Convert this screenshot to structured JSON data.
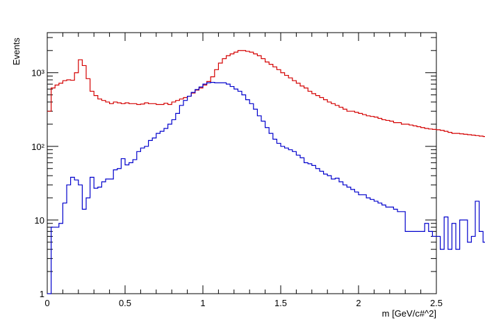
{
  "chart_data": {
    "type": "line",
    "title": "",
    "xlabel": "m [GeV/c#^2]",
    "ylabel": "Events",
    "xlim": [
      0,
      2.5
    ],
    "ylim": [
      1,
      3500
    ],
    "yscale": "log",
    "grid": false,
    "legend": "none",
    "x_ticks": [
      "0",
      "0.5",
      "1",
      "1.5",
      "2",
      "2.5"
    ],
    "y_ticks": [
      "1",
      "10",
      "10²",
      "10³"
    ],
    "bin_width": 0.025,
    "series": [
      {
        "color": "#d40000",
        "values": [
          300,
          620,
          680,
          720,
          780,
          800,
          790,
          1000,
          1500,
          1250,
          830,
          560,
          490,
          440,
          420,
          400,
          380,
          400,
          390,
          380,
          390,
          380,
          380,
          370,
          375,
          390,
          380,
          380,
          370,
          370,
          385,
          370,
          400,
          420,
          440,
          460,
          480,
          530,
          580,
          620,
          680,
          760,
          880,
          1100,
          1350,
          1550,
          1700,
          1800,
          1900,
          2000,
          2000,
          1950,
          1900,
          1800,
          1700,
          1550,
          1400,
          1300,
          1200,
          1100,
          1000,
          920,
          850,
          780,
          720,
          660,
          620,
          560,
          520,
          490,
          460,
          430,
          400,
          380,
          360,
          340,
          320,
          300,
          300,
          290,
          280,
          270,
          260,
          255,
          250,
          240,
          230,
          225,
          220,
          210,
          210,
          200,
          200,
          195,
          190,
          185,
          180,
          175,
          172,
          170,
          168,
          165,
          160,
          155,
          150,
          150,
          148,
          146,
          144,
          142,
          140,
          138,
          136,
          134,
          132,
          130,
          128,
          126,
          124,
          122,
          120,
          120,
          118,
          116,
          115,
          130
        ]
      },
      {
        "color": "#0000cc",
        "values": [
          1,
          8,
          8,
          9,
          17,
          30,
          38,
          35,
          30,
          14,
          20,
          38,
          27,
          28,
          33,
          36,
          36,
          48,
          50,
          68,
          56,
          60,
          66,
          85,
          95,
          100,
          120,
          130,
          150,
          160,
          175,
          200,
          230,
          280,
          360,
          420,
          480,
          540,
          590,
          640,
          700,
          730,
          740,
          730,
          730,
          730,
          700,
          650,
          600,
          560,
          500,
          430,
          380,
          320,
          260,
          220,
          180,
          150,
          125,
          110,
          100,
          95,
          90,
          85,
          76,
          70,
          60,
          58,
          55,
          50,
          46,
          42,
          40,
          36,
          37,
          33,
          30,
          28,
          26,
          24,
          22,
          22,
          20,
          19,
          18,
          17,
          16,
          15,
          15,
          14,
          13,
          13,
          7,
          7,
          7,
          7,
          7,
          9,
          7,
          6,
          6,
          4,
          11,
          4,
          9,
          4,
          10,
          10,
          5,
          6,
          18,
          7,
          5,
          7,
          7,
          4,
          5,
          3,
          3,
          2
        ]
      }
    ]
  }
}
